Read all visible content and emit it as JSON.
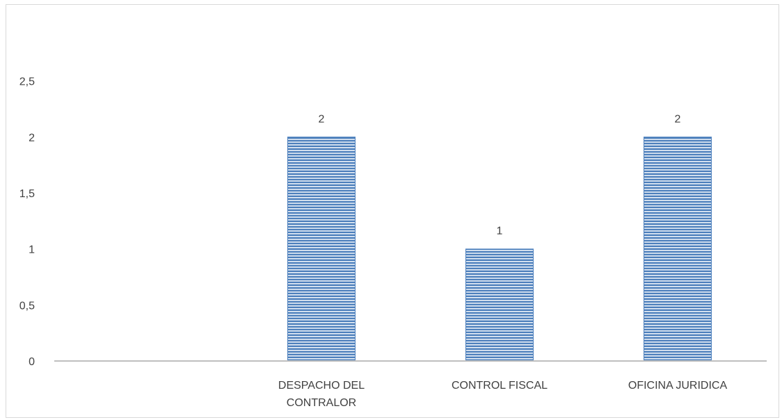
{
  "chart_data": {
    "type": "bar",
    "title": "",
    "xlabel": "",
    "ylabel": "",
    "categories": [
      [
        "",
        ""
      ],
      [
        "DESPACHO DEL",
        "CONTRALOR"
      ],
      [
        "CONTROL FISCAL"
      ],
      [
        "OFICINA JURIDICA"
      ]
    ],
    "values": [
      null,
      2,
      1,
      2
    ],
    "data_labels": [
      "",
      "2",
      "1",
      "2"
    ],
    "y_ticks": [
      "0",
      "0,5",
      "1",
      "1,5",
      "2",
      "2,5"
    ],
    "y_tick_values": [
      0,
      0.5,
      1,
      1.5,
      2,
      2.5
    ],
    "ylim": [
      0,
      3
    ],
    "grid": false,
    "legend": "none",
    "colors": {
      "bar_fill": "#4f81bd",
      "bar_stripe": "#ffffff",
      "axis": "#bfbfbf",
      "text": "#404040",
      "frame": "#d9d9d9"
    }
  }
}
